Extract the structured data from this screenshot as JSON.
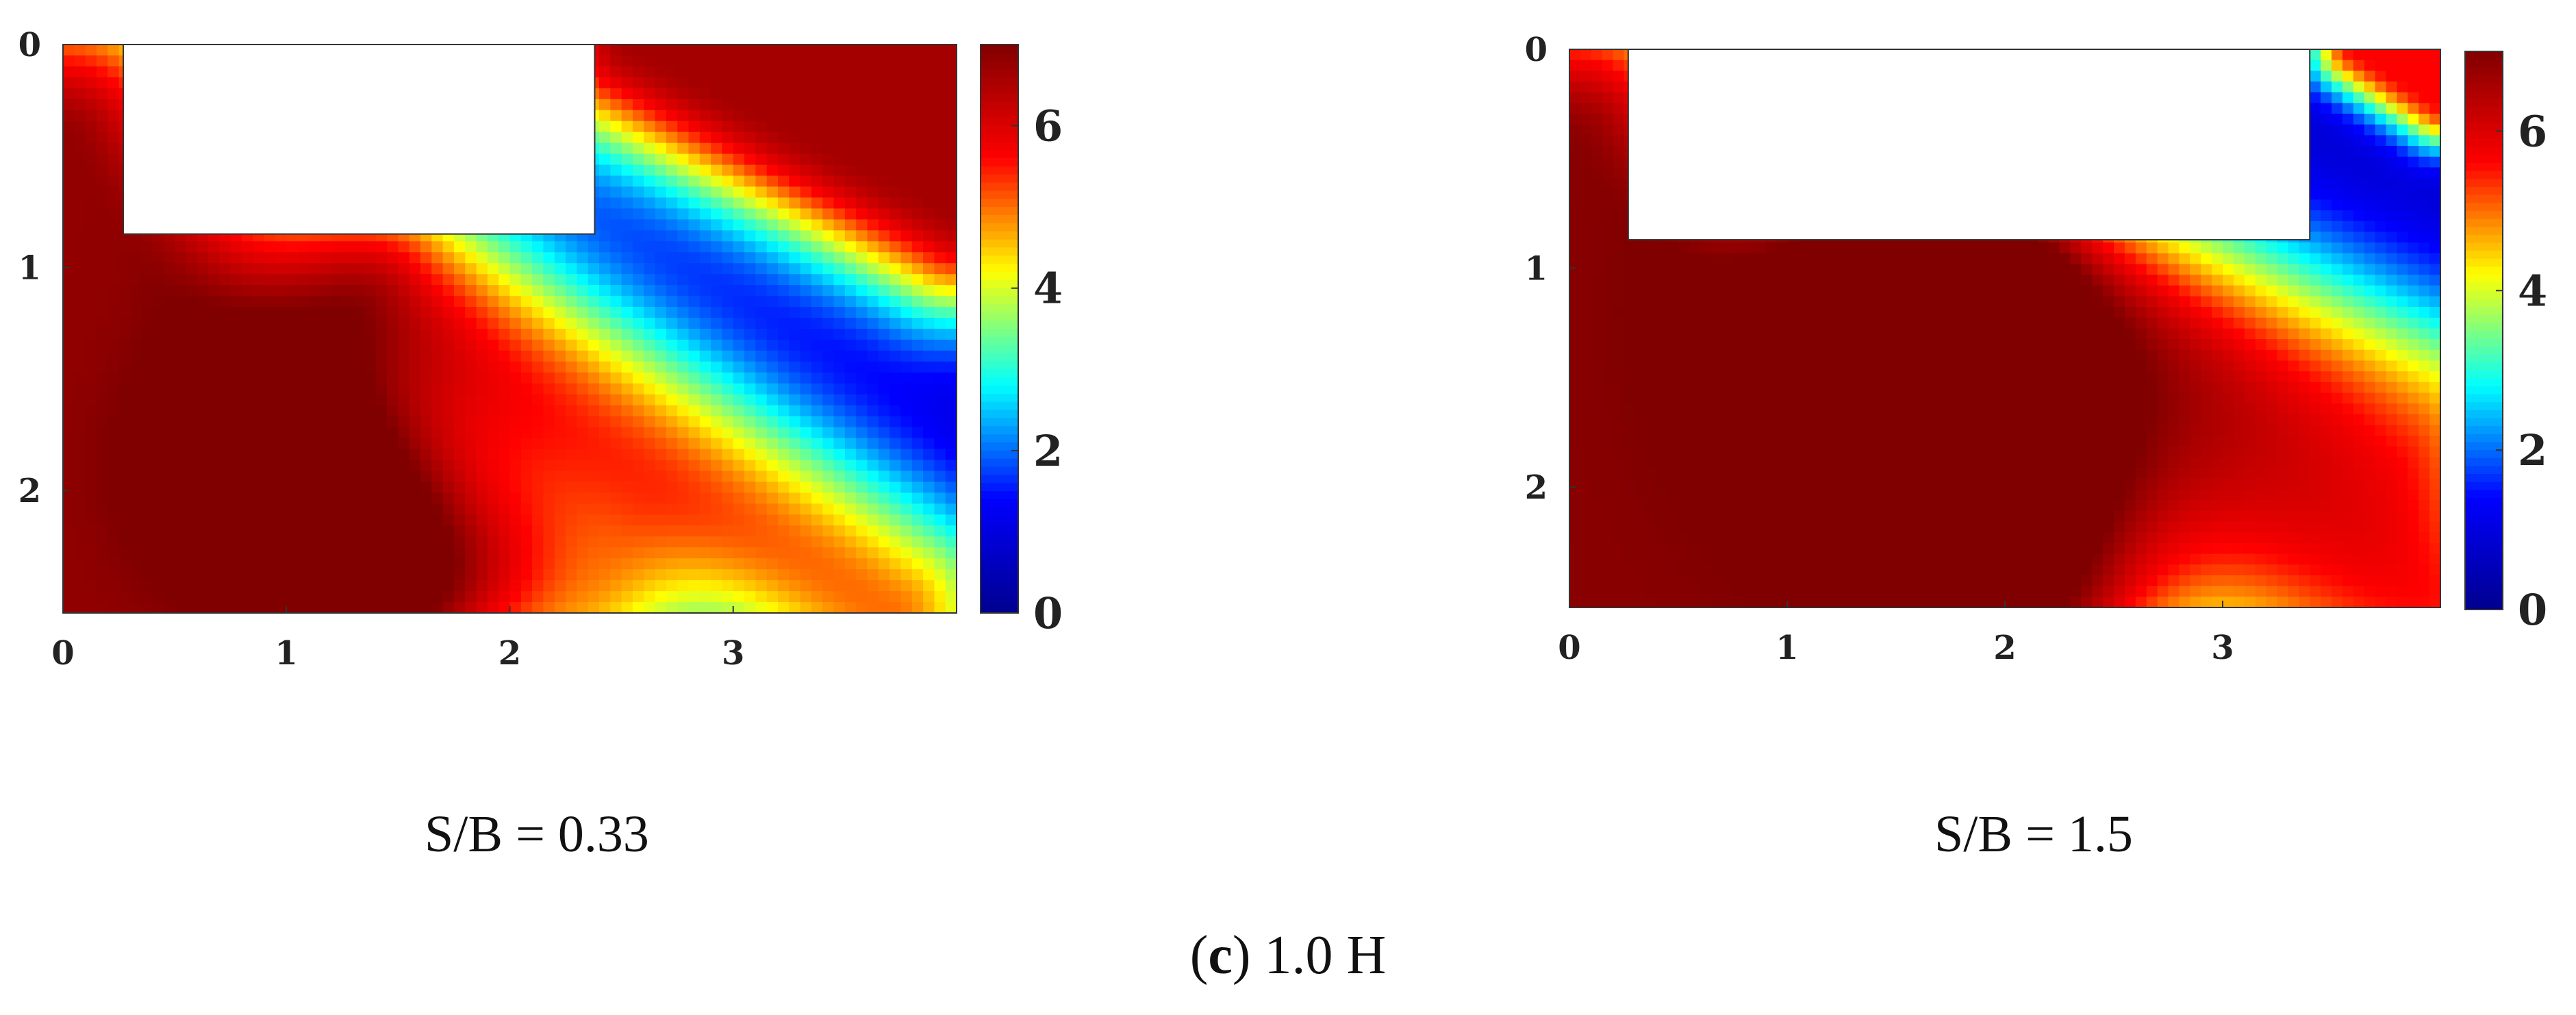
{
  "figure": {
    "label_open": "(",
    "label_letter": "c",
    "label_close": ")",
    "label_text": " 1.0 H"
  },
  "colormap": {
    "name": "jet",
    "stops": [
      "#00008f",
      "#0000ff",
      "#00ffff",
      "#ffff00",
      "#ff0000",
      "#800000"
    ]
  },
  "chart_data": [
    {
      "type": "heatmap",
      "caption": "S/B = 0.33",
      "xlim": [
        0,
        4
      ],
      "ylim": [
        0,
        2.55
      ],
      "y_axis_reversed": true,
      "x_ticks": [
        "0",
        "1",
        "2",
        "3"
      ],
      "x_tick_values": [
        0,
        1,
        2,
        3
      ],
      "y_ticks": [
        "0",
        "1",
        "2"
      ],
      "y_tick_values": [
        0,
        1,
        2
      ],
      "colorbar": {
        "min": 0,
        "max": 7,
        "ticks": [
          "0",
          "2",
          "4",
          "6"
        ],
        "tick_values": [
          0,
          2,
          4,
          6
        ]
      },
      "footing": {
        "x0": 0.27,
        "x1": 2.38,
        "y0": 0,
        "y1": 0.85
      },
      "field": {
        "description_fields": "base value plus gaussian bands in data units",
        "base": 0.6,
        "bands": [
          {
            "ax": 0.0,
            "ay": 0.45,
            "bx": 1.2,
            "by": 2.55,
            "width": 0.55,
            "amp": 6.2,
            "side": "below"
          },
          {
            "ax": 2.55,
            "ay": 0.0,
            "bx": 4.0,
            "by": 0.75,
            "width": 0.35,
            "amp": 6.0,
            "side": "above"
          },
          {
            "ax": 1.5,
            "ay": 1.1,
            "bx": 3.7,
            "by": 2.55,
            "width": 0.4,
            "amp": 4.4,
            "side": "none"
          },
          {
            "ax": 1.0,
            "ay": 1.9,
            "bx": 2.3,
            "by": 2.55,
            "width": 0.35,
            "amp": 2.6,
            "side": "none"
          }
        ]
      }
    },
    {
      "type": "heatmap",
      "caption": "S/B = 1.5",
      "xlim": [
        0,
        4
      ],
      "ylim": [
        0,
        2.55
      ],
      "y_axis_reversed": true,
      "x_ticks": [
        "0",
        "1",
        "2",
        "3"
      ],
      "x_tick_values": [
        0,
        1,
        2,
        3
      ],
      "y_ticks": [
        "0",
        "1",
        "2"
      ],
      "y_tick_values": [
        0,
        1,
        2
      ],
      "colorbar": {
        "min": 0,
        "max": 7,
        "ticks": [
          "0",
          "2",
          "4",
          "6"
        ],
        "tick_values": [
          0,
          2,
          4,
          6
        ]
      },
      "footing": {
        "x0": 0.27,
        "x1": 3.4,
        "y0": 0,
        "y1": 0.87
      },
      "field": {
        "base": 0.6,
        "bands": [
          {
            "ax": 0.0,
            "ay": 0.45,
            "bx": 1.3,
            "by": 2.55,
            "width": 0.6,
            "amp": 6.3,
            "side": "below"
          },
          {
            "ax": 3.6,
            "ay": 0.0,
            "bx": 4.0,
            "by": 0.25,
            "width": 0.15,
            "amp": 5.0,
            "side": "above"
          },
          {
            "ax": 1.5,
            "ay": 0.95,
            "bx": 2.2,
            "by": 2.55,
            "width": 0.4,
            "amp": 3.2,
            "side": "none"
          },
          {
            "ax": 1.8,
            "ay": 1.3,
            "bx": 3.9,
            "by": 2.55,
            "width": 0.55,
            "amp": 4.8,
            "side": "none"
          },
          {
            "ax": 2.3,
            "ay": 0.95,
            "bx": 3.9,
            "by": 1.6,
            "width": 0.4,
            "amp": 2.6,
            "side": "none"
          }
        ]
      }
    }
  ]
}
